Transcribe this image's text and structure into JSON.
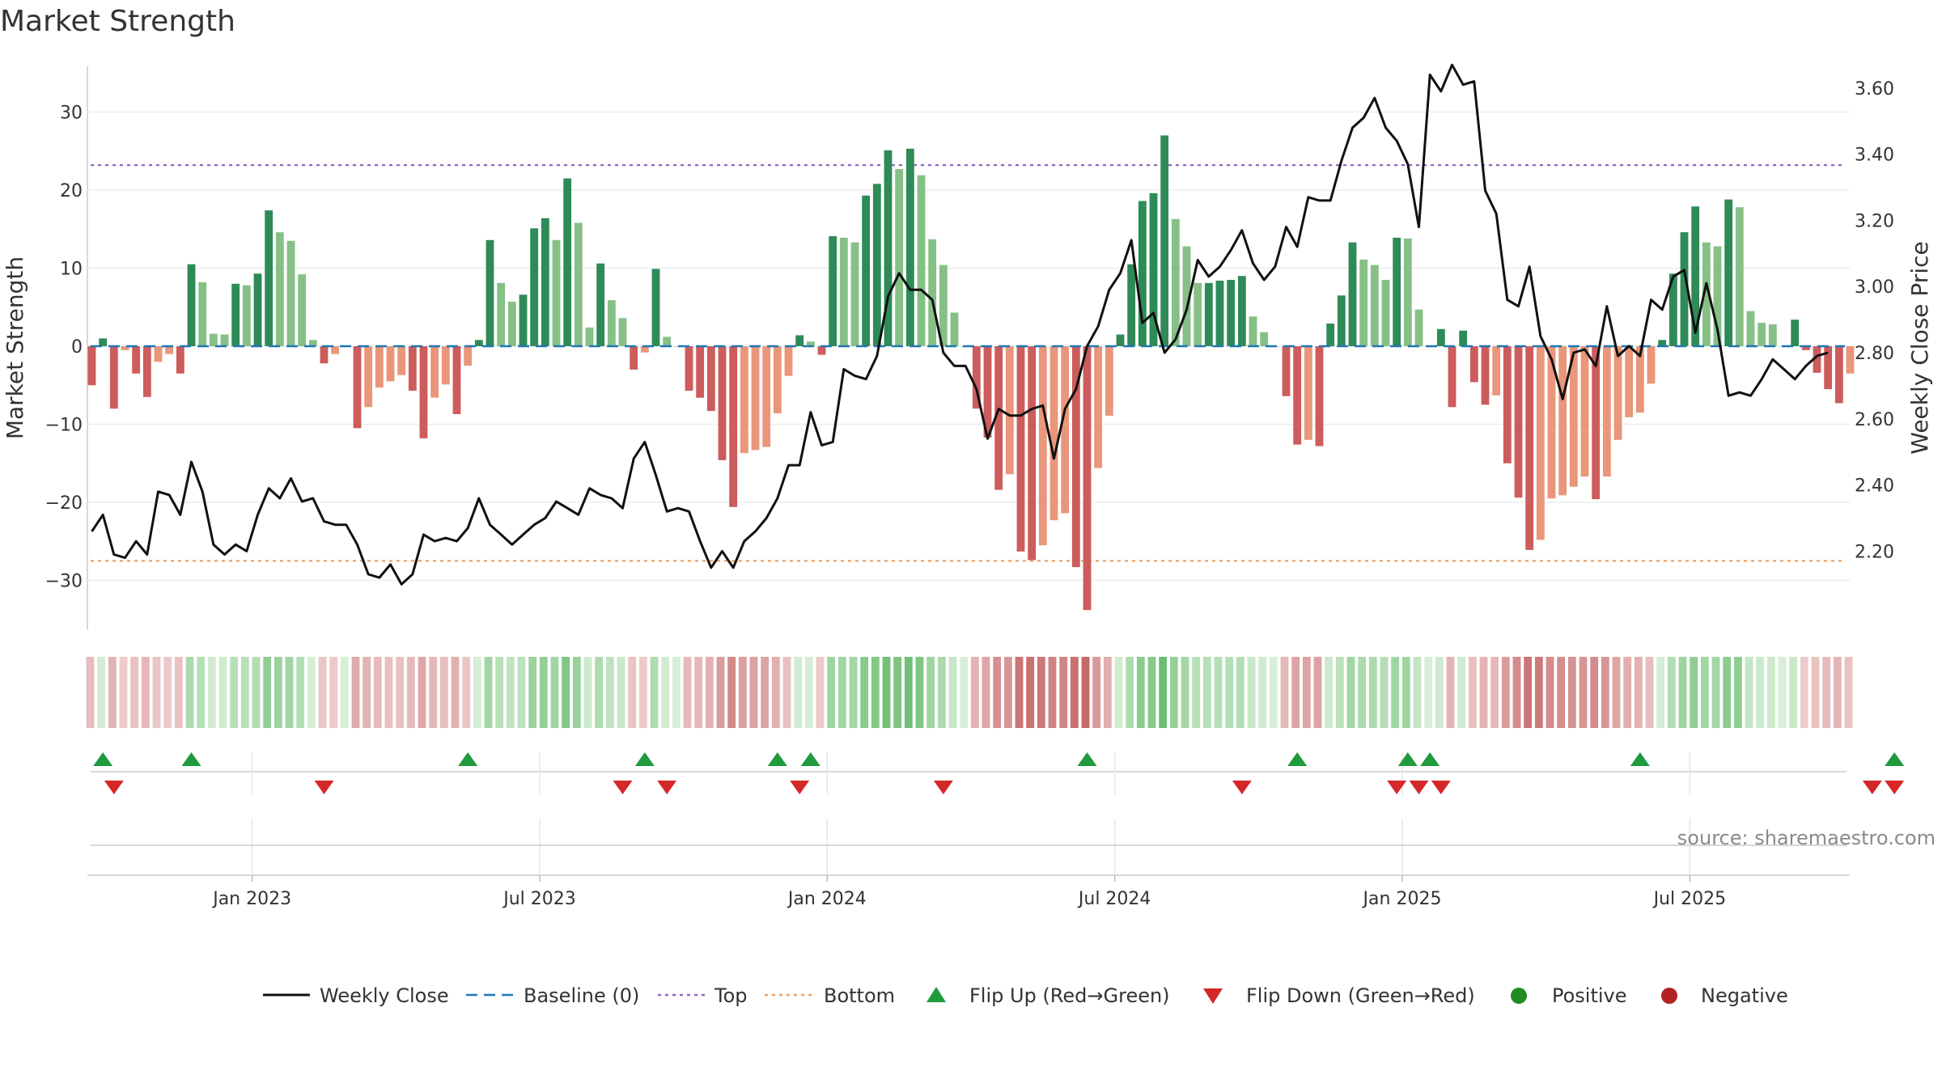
{
  "title": "Market Strength",
  "source": "source: sharemaestro.com",
  "colors": {
    "pos_strong": "#2e8b57",
    "pos_light": "#86c086",
    "neg_strong": "#cd5c5c",
    "neg_light": "#e9967a",
    "line": "#111111",
    "baseline": "#1f77b4",
    "top": "#9467bd",
    "bottom": "#f0a060",
    "flip_up": "#1f9a3c",
    "flip_down": "#d62728",
    "positive_dot": "#228b22",
    "negative_dot": "#b22222"
  },
  "chart_data": {
    "type": "bar",
    "title": "Market Strength",
    "ylabel": "Market Strength",
    "y2label": "Weekly Close Price",
    "ylim": [
      -36,
      36
    ],
    "y2lim": [
      2.02,
      3.71
    ],
    "yticks": [
      30,
      20,
      10,
      0,
      -10,
      -20,
      -30
    ],
    "ytick_labels": [
      "30",
      "20",
      "10",
      "0",
      "−10",
      "−20",
      "−30"
    ],
    "y2ticks": [
      3.6,
      3.4,
      3.2,
      3.0,
      2.8,
      2.6,
      2.4,
      2.2
    ],
    "y2tick_labels": [
      "3.60",
      "3.40",
      "3.20",
      "3.00",
      "2.80",
      "2.60",
      "2.40",
      "2.20"
    ],
    "xlabels": [
      "Jan 2023",
      "Jul 2023",
      "Jan 2024",
      "Jul 2024",
      "Jan 2025",
      "Jul 2025"
    ],
    "xlabel_weeks": [
      14.5,
      40.5,
      66.5,
      92.5,
      118.5,
      144.5
    ],
    "top_line": 23.2,
    "bottom_line": -27.5,
    "baseline": 0,
    "strength": [
      -5,
      1,
      -8,
      -0.5,
      -3.5,
      -6.5,
      -2,
      -1,
      -3.5,
      10.5,
      8.2,
      1.6,
      1.5,
      8,
      7.8,
      9.3,
      17.4,
      14.6,
      13.5,
      9.2,
      0.8,
      -2.2,
      -1,
      0,
      -10.5,
      -7.8,
      -5.3,
      -4.5,
      -3.7,
      -5.7,
      -11.8,
      -6.6,
      -4.9,
      -8.7,
      -2.5,
      0.8,
      13.6,
      8.1,
      5.7,
      6.6,
      15.1,
      16.4,
      13.6,
      21.5,
      15.8,
      2.4,
      10.6,
      5.9,
      3.6,
      -3,
      -0.8,
      9.9,
      1.2,
      0,
      -5.7,
      -6.6,
      -8.3,
      -14.6,
      -20.6,
      -13.7,
      -13.3,
      -12.9,
      -8.6,
      -3.8,
      1.4,
      0.6,
      -1.1,
      14.1,
      13.9,
      13.3,
      19.3,
      20.8,
      25.1,
      22.7,
      25.3,
      21.9,
      13.7,
      10.4,
      4.3,
      0,
      -8,
      -11.7,
      -18.4,
      -16.4,
      -26.3,
      -27.4,
      -25.5,
      -22.3,
      -21.4,
      -28.3,
      -33.8,
      -15.6,
      -8.9,
      1.5,
      10.5,
      18.6,
      19.6,
      27,
      16.3,
      12.8,
      8.1,
      8.1,
      8.4,
      8.5,
      9,
      3.8,
      1.8,
      0,
      -6.4,
      -12.6,
      -12,
      -12.8,
      2.9,
      6.5,
      13.3,
      11.1,
      10.4,
      8.5,
      13.9,
      13.8,
      4.7,
      0,
      2.2,
      -7.8,
      2,
      -4.6,
      -7.5,
      -6.3,
      -15,
      -19.4,
      -26.1,
      -24.8,
      -19.5,
      -19.1,
      -18,
      -16.7,
      -19.6,
      -16.7,
      -12,
      -9.1,
      -8.5,
      -4.8,
      0.8,
      9.3,
      14.6,
      17.9,
      13.3,
      12.8,
      18.8,
      17.8,
      4.5,
      3,
      2.8,
      0,
      3.4,
      -0.5,
      -3.4,
      -5.5,
      -7.3,
      -3.5
    ],
    "close": [
      2.26,
      2.31,
      2.19,
      2.18,
      2.23,
      2.19,
      2.38,
      2.37,
      2.31,
      2.47,
      2.38,
      2.22,
      2.19,
      2.22,
      2.2,
      2.31,
      2.39,
      2.36,
      2.42,
      2.35,
      2.36,
      2.29,
      2.28,
      2.28,
      2.22,
      2.13,
      2.12,
      2.16,
      2.1,
      2.13,
      2.25,
      2.23,
      2.24,
      2.23,
      2.27,
      2.36,
      2.28,
      2.25,
      2.22,
      2.25,
      2.28,
      2.3,
      2.35,
      2.33,
      2.31,
      2.39,
      2.37,
      2.36,
      2.33,
      2.48,
      2.53,
      2.43,
      2.32,
      2.33,
      2.32,
      2.23,
      2.15,
      2.2,
      2.15,
      2.23,
      2.26,
      2.3,
      2.36,
      2.46,
      2.46,
      2.62,
      2.52,
      2.53,
      2.75,
      2.73,
      2.72,
      2.79,
      2.97,
      3.04,
      2.99,
      2.99,
      2.96,
      2.8,
      2.76,
      2.76,
      2.69,
      2.54,
      2.63,
      2.61,
      2.61,
      2.63,
      2.64,
      2.48,
      2.63,
      2.69,
      2.82,
      2.88,
      2.99,
      3.04,
      3.14,
      2.89,
      2.92,
      2.8,
      2.84,
      2.93,
      3.08,
      3.03,
      3.06,
      3.11,
      3.17,
      3.07,
      3.02,
      3.06,
      3.18,
      3.12,
      3.27,
      3.26,
      3.26,
      3.38,
      3.48,
      3.51,
      3.57,
      3.48,
      3.44,
      3.37,
      3.18,
      3.64,
      3.59,
      3.67,
      3.61,
      3.62,
      3.29,
      3.22,
      2.96,
      2.94,
      3.06,
      2.85,
      2.78,
      2.66,
      2.8,
      2.81,
      2.76,
      2.94,
      2.79,
      2.82,
      2.79,
      2.96,
      2.93,
      3.03,
      3.05,
      2.86,
      3.01,
      2.87,
      2.67,
      2.68,
      2.67,
      2.72,
      2.78,
      2.75,
      2.72,
      2.76,
      2.79,
      2.8
    ],
    "flip_up_weeks": [
      1,
      9,
      34,
      50,
      62,
      65,
      90,
      109,
      119,
      121,
      140,
      163
    ],
    "flip_down_weeks": [
      2,
      21,
      48,
      52,
      64,
      77,
      104,
      118,
      120,
      122,
      161,
      163
    ],
    "gradient_strip": "per-week shading of strength, green for positive, red for negative, deeper for larger magnitude"
  },
  "legend": [
    {
      "label": "Weekly Close",
      "marker": "line"
    },
    {
      "label": "Baseline (0)",
      "marker": "dashed-line"
    },
    {
      "label": "Top",
      "marker": "dotted-line"
    },
    {
      "label": "Bottom",
      "marker": "dotted-line"
    },
    {
      "label": "Flip Up (Red→Green)",
      "marker": "triangle-up"
    },
    {
      "label": "Flip Down (Green→Red)",
      "marker": "triangle-down"
    },
    {
      "label": "Positive",
      "marker": "circle"
    },
    {
      "label": "Negative",
      "marker": "circle"
    }
  ]
}
